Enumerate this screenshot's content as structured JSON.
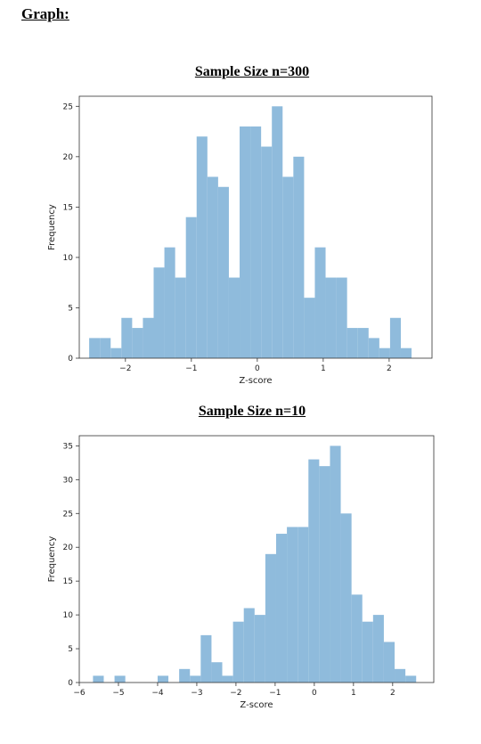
{
  "page": {
    "heading": "Graph:"
  },
  "chart_data": [
    {
      "type": "bar",
      "title": "Sample Size n=300",
      "xlabel": "Z-score",
      "ylabel": "Frequency",
      "xlim": [
        -2.7,
        2.65
      ],
      "ylim": [
        0,
        26
      ],
      "xticks": [
        -2,
        -1,
        0,
        1,
        2
      ],
      "xtick_labels": [
        "−2",
        "−1",
        "0",
        "1",
        "2"
      ],
      "yticks": [
        0,
        5,
        10,
        15,
        20,
        25
      ],
      "bar_color": "#8fbbdc",
      "bins": {
        "start": -2.55,
        "width": 0.163,
        "counts": [
          2,
          2,
          1,
          4,
          3,
          4,
          9,
          11,
          8,
          14,
          22,
          18,
          17,
          8,
          23,
          23,
          21,
          25,
          18,
          20,
          6,
          11,
          8,
          8,
          3,
          3,
          2,
          1,
          4,
          1
        ]
      }
    },
    {
      "type": "bar",
      "title": "Sample Size n=10",
      "xlabel": "Z-score",
      "ylabel": "Frequency",
      "xlim": [
        -6,
        3.05
      ],
      "ylim": [
        0,
        36.5
      ],
      "xticks": [
        -6,
        -5,
        -4,
        -3,
        -2,
        -1,
        0,
        1,
        2
      ],
      "xtick_labels": [
        "−6",
        "−5",
        "−4",
        "−3",
        "−2",
        "−1",
        "0",
        "1",
        "2"
      ],
      "yticks": [
        0,
        5,
        10,
        15,
        20,
        25,
        30,
        35
      ],
      "bar_color": "#8fbbdc",
      "bins": {
        "start": -5.65,
        "width": 0.275,
        "counts": [
          1,
          0,
          1,
          0,
          0,
          0,
          1,
          0,
          2,
          1,
          7,
          3,
          1,
          9,
          11,
          10,
          19,
          22,
          23,
          23,
          33,
          32,
          35,
          25,
          13,
          9,
          10,
          6,
          2,
          1
        ]
      }
    }
  ]
}
